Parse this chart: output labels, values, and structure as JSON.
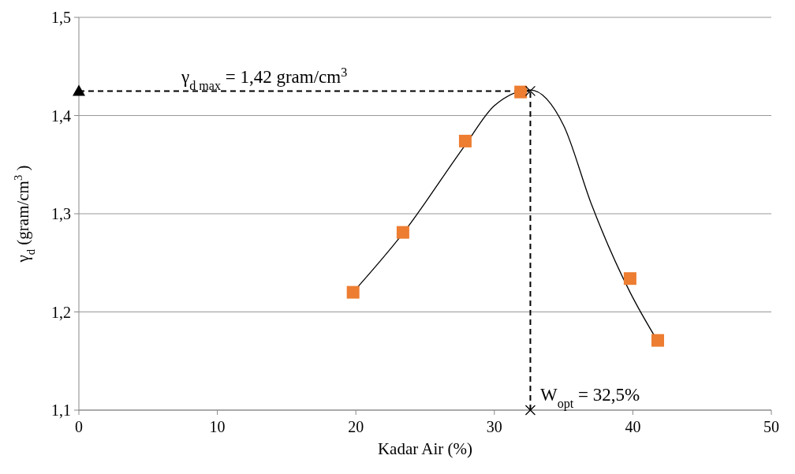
{
  "chart_data": {
    "type": "scatter",
    "xlabel": "Kadar Air (%)",
    "ylabel": "γ$_{d}$ (gram/cm$^{3}$)",
    "xlim": [
      0,
      50
    ],
    "xticks": [
      0,
      10,
      20,
      30,
      40,
      50
    ],
    "ylim": [
      1.1,
      1.5
    ],
    "yticks": [
      {
        "value": 1.1,
        "label": "1,1"
      },
      {
        "value": 1.2,
        "label": "1,2"
      },
      {
        "value": 1.3,
        "label": "1,3"
      },
      {
        "value": 1.4,
        "label": "1,4"
      },
      {
        "value": 1.5,
        "label": "1,5"
      }
    ],
    "grid": "y",
    "series": [
      {
        "color": "#ed7d31",
        "marker": "square",
        "x": [
          19.8,
          23.4,
          27.9,
          31.9,
          39.8,
          41.8
        ],
        "values": [
          1.22,
          1.281,
          1.374,
          1.424,
          1.234,
          1.171
        ]
      },
      {
        "type": "line",
        "color": "#000000",
        "marker": "none",
        "line_style": "solid",
        "x": [
          19.8,
          23.4,
          27.9,
          30,
          32.6,
          35,
          37,
          39.8,
          41.8
        ],
        "values": [
          1.22,
          1.28,
          1.37,
          1.41,
          1.426,
          1.39,
          1.31,
          1.22,
          1.17
        ]
      },
      {
        "type": "line",
        "color": "#000000",
        "marker": "none",
        "line_style": "dashed",
        "x": [
          0,
          32.6
        ],
        "values": [
          1.425,
          1.425
        ]
      },
      {
        "type": "line",
        "color": "#000000",
        "marker": "none",
        "line_style": "dashed",
        "x": [
          32.6,
          32.6
        ],
        "values": [
          1.1,
          1.425
        ]
      },
      {
        "color": "#000000",
        "marker": "triangle",
        "x": [
          0
        ],
        "values": [
          1.425
        ]
      },
      {
        "color": "#000000",
        "marker": "cross",
        "x": [
          32.6,
          32.6
        ],
        "values": [
          1.425,
          1.1
        ]
      }
    ],
    "annotations": [
      "γ$_{d max}$ = 1,42 gram/cm$^{3}$",
      "W$_{opt}$ = 32,5%"
    ]
  }
}
